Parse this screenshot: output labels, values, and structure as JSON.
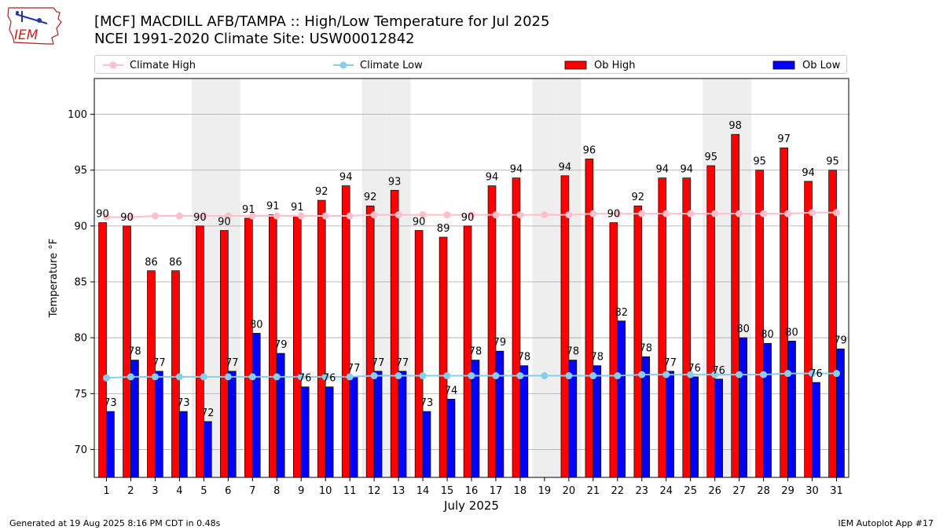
{
  "header": {
    "title_line1": "[MCF] MACDILL AFB/TAMPA :: High/Low Temperature for Jul 2025",
    "title_line2": "NCEI 1991-2020 Climate Site: USW00012842",
    "logo_text": "IEM"
  },
  "legend": {
    "climate_high": "Climate High",
    "climate_low": "Climate Low",
    "ob_high": "Ob High",
    "ob_low": "Ob Low"
  },
  "footer": {
    "generated": "Generated at 19 Aug 2025 8:16 PM CDT in 0.48s",
    "app": "IEM Autoplot App #17"
  },
  "colors": {
    "ob_high": "#ff0000",
    "ob_low": "#0000ff",
    "climate_high": "#ffc0cb",
    "climate_low": "#87ceeb",
    "weekend_shade": "#eeeeee",
    "grid": "#b0b0b0"
  },
  "chart_data": {
    "type": "bar",
    "xlabel": "July 2025",
    "ylabel": "Temperature °F",
    "ylim": [
      67.5,
      103.2
    ],
    "yticks": [
      70,
      75,
      80,
      85,
      90,
      95,
      100
    ],
    "grid": "horizontal",
    "legend_position": "top",
    "categories": [
      "1",
      "2",
      "3",
      "4",
      "5",
      "6",
      "7",
      "8",
      "9",
      "10",
      "11",
      "12",
      "13",
      "14",
      "15",
      "16",
      "17",
      "18",
      "19",
      "20",
      "21",
      "22",
      "23",
      "24",
      "25",
      "26",
      "27",
      "28",
      "29",
      "30",
      "31"
    ],
    "shaded_days": [
      5,
      6,
      12,
      13,
      19,
      20,
      26,
      27
    ],
    "series": [
      {
        "name": "Ob High",
        "kind": "bar",
        "values": [
          90.3,
          90.0,
          86.0,
          86.0,
          90.0,
          89.6,
          90.7,
          91.0,
          90.9,
          92.3,
          93.6,
          91.8,
          93.2,
          89.6,
          89.0,
          90.0,
          93.6,
          94.3,
          null,
          94.5,
          96.0,
          90.3,
          91.8,
          94.3,
          94.3,
          95.4,
          98.2,
          95.0,
          97.0,
          94.0,
          95.0
        ],
        "labels": [
          "90",
          "90",
          "86",
          "86",
          "90",
          "90",
          "91",
          "91",
          "91",
          "92",
          "94",
          "92",
          "93",
          "90",
          "89",
          "90",
          "94",
          "94",
          "",
          "94",
          "96",
          "90",
          "92",
          "94",
          "94",
          "95",
          "98",
          "95",
          "97",
          "94",
          "95"
        ]
      },
      {
        "name": "Ob Low",
        "kind": "bar",
        "values": [
          73.4,
          78.0,
          77.0,
          73.4,
          72.5,
          77.0,
          80.4,
          78.6,
          75.6,
          75.6,
          76.5,
          77.0,
          77.0,
          73.4,
          74.5,
          78.0,
          78.8,
          77.5,
          null,
          78.0,
          77.5,
          81.5,
          78.3,
          77.0,
          76.5,
          76.3,
          80.0,
          79.5,
          79.7,
          76.0,
          79.0
        ],
        "labels": [
          "73",
          "78",
          "77",
          "73",
          "72",
          "77",
          "80",
          "79",
          "76",
          "76",
          "77",
          "77",
          "77",
          "73",
          "74",
          "78",
          "79",
          "78",
          "",
          "78",
          "78",
          "82",
          "78",
          "77",
          "76",
          "76",
          "80",
          "80",
          "80",
          "76",
          "79"
        ]
      },
      {
        "name": "Climate High",
        "kind": "line",
        "values": [
          90.8,
          90.8,
          90.9,
          90.9,
          90.9,
          90.9,
          90.9,
          90.9,
          90.9,
          90.9,
          90.9,
          91.0,
          91.0,
          91.0,
          91.0,
          91.0,
          91.0,
          91.0,
          91.0,
          91.0,
          91.1,
          91.1,
          91.1,
          91.1,
          91.1,
          91.1,
          91.1,
          91.1,
          91.1,
          91.2,
          91.2
        ]
      },
      {
        "name": "Climate Low",
        "kind": "line",
        "values": [
          76.4,
          76.5,
          76.5,
          76.5,
          76.5,
          76.5,
          76.5,
          76.5,
          76.5,
          76.5,
          76.5,
          76.6,
          76.6,
          76.6,
          76.6,
          76.6,
          76.6,
          76.6,
          76.6,
          76.6,
          76.6,
          76.6,
          76.7,
          76.7,
          76.7,
          76.7,
          76.7,
          76.7,
          76.8,
          76.8,
          76.8
        ]
      }
    ]
  }
}
